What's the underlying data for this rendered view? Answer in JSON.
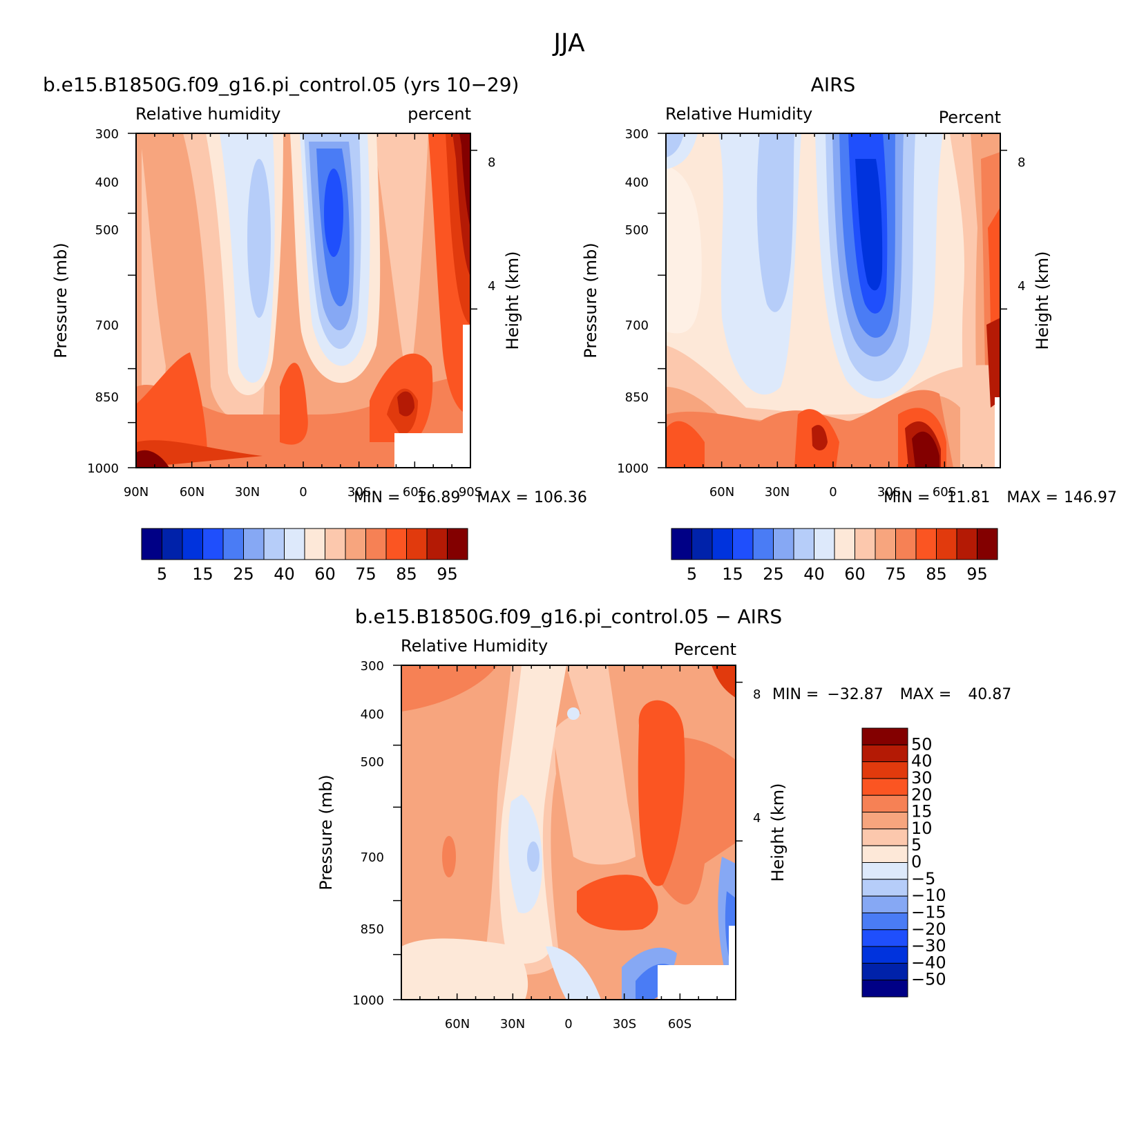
{
  "title": "JJA",
  "scales": {
    "abs_colors": [
      "#000086",
      "#0022aa",
      "#0033dd",
      "#1f4ffc",
      "#4a7cf5",
      "#86a8f4",
      "#b6cdf9",
      "#dde9fb",
      "#fde8d8",
      "#fcc8ad",
      "#f7a57e",
      "#f68155",
      "#fb5522",
      "#e13a0d",
      "#b41a05",
      "#830000"
    ],
    "abs_labels": [
      "5",
      "15",
      "25",
      "40",
      "60",
      "75",
      "85",
      "95"
    ],
    "diff_colors": [
      "#000086",
      "#0022aa",
      "#0033dd",
      "#1f4ffc",
      "#4a7cf5",
      "#86a8f4",
      "#b6cdf9",
      "#dde9fb",
      "#fde8d8",
      "#fcc8ad",
      "#f7a57e",
      "#f68155",
      "#fb5522",
      "#e13a0d",
      "#b41a05",
      "#830000"
    ],
    "diff_labels": [
      "50",
      "40",
      "30",
      "20",
      "15",
      "10",
      "5",
      "0",
      "−5",
      "−10",
      "−15",
      "−20",
      "−30",
      "−40",
      "−50"
    ]
  },
  "chart_data": [
    {
      "type": "heatmap",
      "id": "model",
      "title": "b.e15.B1850G.f09_g16.pi_control.05 (yrs 10−29)",
      "left_label": "Relative humidity",
      "right_label": "percent",
      "ylabel": "Pressure (mb)",
      "ylabel_right": "Height (km)",
      "y_ticks": [
        "300",
        "400",
        "500",
        "700",
        "850",
        "1000"
      ],
      "y_tick_values": [
        300,
        400,
        500,
        700,
        850,
        1000
      ],
      "right_ticks": [
        "8",
        "4"
      ],
      "x_ticks": [
        "90N",
        "60N",
        "30N",
        "0",
        "30S",
        "60S",
        "90S"
      ],
      "x_tick_values": [
        90,
        60,
        30,
        0,
        -30,
        -60,
        -90
      ],
      "xlim": [
        90,
        -90
      ],
      "ylim": [
        300,
        1000
      ],
      "min_label": "MIN =",
      "min_value": "16.89",
      "max_label": "MAX =",
      "max_value": "106.36"
    },
    {
      "type": "heatmap",
      "id": "obs",
      "title": "AIRS",
      "left_label": "Relative Humidity",
      "right_label": "Percent",
      "ylabel": "Pressure (mb)",
      "ylabel_right": "Height (km)",
      "y_ticks": [
        "300",
        "400",
        "500",
        "700",
        "850",
        "1000"
      ],
      "y_tick_values": [
        300,
        400,
        500,
        700,
        850,
        1000
      ],
      "right_ticks": [
        "8",
        "4"
      ],
      "x_ticks": [
        "60N",
        "30N",
        "0",
        "30S",
        "60S"
      ],
      "x_tick_values": [
        60,
        30,
        0,
        -30,
        -60
      ],
      "xlim": [
        90,
        -90
      ],
      "ylim": [
        300,
        1000
      ],
      "min_label": "MIN =",
      "min_value": "11.81",
      "max_label": "MAX =",
      "max_value": "146.97"
    },
    {
      "type": "heatmap",
      "id": "diff",
      "title": "b.e15.B1850G.f09_g16.pi_control.05 − AIRS",
      "left_label": "Relative Humidity",
      "right_label": "Percent",
      "ylabel": "Pressure (mb)",
      "ylabel_right": "Height (km)",
      "y_ticks": [
        "300",
        "400",
        "500",
        "700",
        "850",
        "1000"
      ],
      "y_tick_values": [
        300,
        400,
        500,
        700,
        850,
        1000
      ],
      "right_ticks": [
        "8",
        "4"
      ],
      "x_ticks": [
        "60N",
        "30N",
        "0",
        "30S",
        "60S"
      ],
      "x_tick_values": [
        60,
        30,
        0,
        -30,
        -60
      ],
      "xlim": [
        90,
        -90
      ],
      "ylim": [
        300,
        1000
      ],
      "min_label": "MIN =",
      "min_value": "−32.87",
      "max_label": "MAX =",
      "max_value": "40.87"
    }
  ]
}
